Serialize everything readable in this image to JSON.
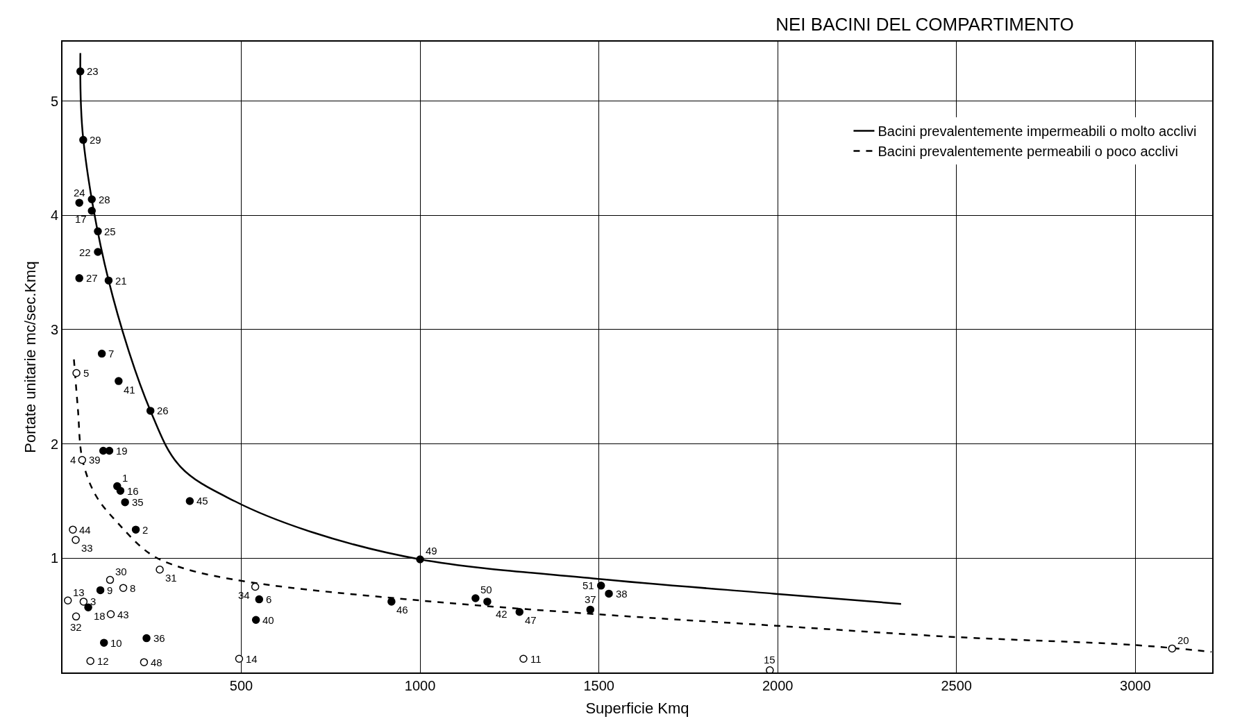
{
  "chart_data": {
    "type": "scatter",
    "title": "NEI BACINI DEL COMPARTIMENTO",
    "xlabel": "Superficie Kmq",
    "ylabel": "Portate unitarie mc/sec.Kmq",
    "xlim": [
      0,
      3215
    ],
    "ylim": [
      0,
      5.52
    ],
    "xticks": [
      500,
      1000,
      1500,
      2000,
      2500,
      3000
    ],
    "yticks": [
      1,
      2,
      3,
      4,
      5
    ],
    "grid": true,
    "legend": "top right",
    "marker": "circle",
    "series": [
      {
        "name": "Bacini prevalentemente impermeabili o molto acclivi",
        "type": "line",
        "line_style": "solid",
        "marker": "none",
        "color": "#000000",
        "x": [
          50,
          58,
          129,
          246,
          330,
          481,
          696,
          1000,
          1494,
          1989,
          2345
        ],
        "values": [
          5.42,
          4.67,
          3.43,
          2.29,
          1.8,
          1.5,
          1.23,
          0.99,
          0.82,
          0.69,
          0.6
        ]
      },
      {
        "name": "Bacini prevalentemente permeabili o poco acclivi",
        "type": "line",
        "line_style": "dashed",
        "marker": "none",
        "color": "#000000",
        "x": [
          32,
          43,
          56,
          93,
          157,
          244,
          330,
          524,
          1000,
          1494,
          1989,
          2498,
          2999,
          3213
        ],
        "values": [
          2.74,
          2.31,
          1.86,
          1.55,
          1.3,
          1.04,
          0.92,
          0.79,
          0.63,
          0.51,
          0.41,
          0.31,
          0.24,
          0.18
        ]
      },
      {
        "color": "#000000",
        "x": [
          50,
          58,
          47,
          82,
          82,
          99,
          99,
          129,
          47,
          110,
          157,
          246,
          114,
          131,
          153,
          162,
          175,
          356,
          205,
          106,
          72,
          116,
          235,
          550,
          541,
          1000,
          920,
          1155,
          1188,
          1278,
          1476,
          1506,
          1528
        ],
        "values": [
          5.26,
          4.66,
          4.11,
          4.14,
          4.04,
          3.86,
          3.68,
          3.43,
          3.45,
          2.79,
          2.55,
          2.29,
          1.94,
          1.94,
          1.63,
          1.59,
          1.49,
          1.5,
          1.25,
          0.72,
          0.57,
          0.26,
          0.3,
          0.64,
          0.46,
          0.99,
          0.62,
          0.65,
          0.62,
          0.53,
          0.55,
          0.76,
          0.69
        ]
      },
      {
        "color": "#ffffff",
        "x": [
          39,
          55,
          29,
          37,
          133,
          170,
          15,
          59,
          135,
          38,
          272,
          78,
          228,
          494,
          539,
          1289,
          1978,
          3103
        ],
        "values": [
          2.62,
          1.86,
          1.25,
          1.16,
          0.81,
          0.74,
          0.63,
          0.62,
          0.51,
          0.49,
          0.9,
          0.1,
          0.09,
          0.12,
          0.75,
          0.12,
          0.02,
          0.21
        ]
      }
    ],
    "annotations": [
      {
        "text": "23",
        "x": 50,
        "y": 5.26
      },
      {
        "text": "29",
        "x": 58,
        "y": 4.66
      },
      {
        "text": "24",
        "x": 47,
        "y": 4.11
      },
      {
        "text": "28",
        "x": 82,
        "y": 4.14
      },
      {
        "text": "17",
        "x": 82,
        "y": 4.04
      },
      {
        "text": "25",
        "x": 99,
        "y": 3.86
      },
      {
        "text": "22",
        "x": 99,
        "y": 3.68
      },
      {
        "text": "21",
        "x": 129,
        "y": 3.43
      },
      {
        "text": "27",
        "x": 47,
        "y": 3.45
      },
      {
        "text": "7",
        "x": 110,
        "y": 2.79
      },
      {
        "text": "41",
        "x": 157,
        "y": 2.55
      },
      {
        "text": "26",
        "x": 246,
        "y": 2.29
      },
      {
        "text": "19",
        "x": 131,
        "y": 1.94
      },
      {
        "text": "1",
        "x": 153,
        "y": 1.63
      },
      {
        "text": "16",
        "x": 162,
        "y": 1.59
      },
      {
        "text": "35",
        "x": 175,
        "y": 1.49
      },
      {
        "text": "45",
        "x": 356,
        "y": 1.5
      },
      {
        "text": "2",
        "x": 205,
        "y": 1.25
      },
      {
        "text": "9",
        "x": 106,
        "y": 0.72
      },
      {
        "text": "18",
        "x": 72,
        "y": 0.57
      },
      {
        "text": "10",
        "x": 116,
        "y": 0.26
      },
      {
        "text": "36",
        "x": 235,
        "y": 0.3
      },
      {
        "text": "6",
        "x": 550,
        "y": 0.64
      },
      {
        "text": "40",
        "x": 541,
        "y": 0.46
      },
      {
        "text": "49",
        "x": 1000,
        "y": 0.99
      },
      {
        "text": "46",
        "x": 920,
        "y": 0.62
      },
      {
        "text": "50",
        "x": 1155,
        "y": 0.65
      },
      {
        "text": "42",
        "x": 1188,
        "y": 0.62
      },
      {
        "text": "47",
        "x": 1278,
        "y": 0.53
      },
      {
        "text": "37",
        "x": 1476,
        "y": 0.55
      },
      {
        "text": "51",
        "x": 1506,
        "y": 0.76
      },
      {
        "text": "38",
        "x": 1528,
        "y": 0.69
      },
      {
        "text": "5",
        "x": 39,
        "y": 2.62
      },
      {
        "text": "39",
        "x": 55,
        "y": 1.86
      },
      {
        "text": "4",
        "x": 55,
        "y": 1.86
      },
      {
        "text": "44",
        "x": 29,
        "y": 1.25
      },
      {
        "text": "33",
        "x": 37,
        "y": 1.16
      },
      {
        "text": "30",
        "x": 133,
        "y": 0.81
      },
      {
        "text": "8",
        "x": 170,
        "y": 0.74
      },
      {
        "text": "13",
        "x": 15,
        "y": 0.63
      },
      {
        "text": "3",
        "x": 59,
        "y": 0.62
      },
      {
        "text": "43",
        "x": 135,
        "y": 0.51
      },
      {
        "text": "32",
        "x": 38,
        "y": 0.49
      },
      {
        "text": "31",
        "x": 272,
        "y": 0.9
      },
      {
        "text": "12",
        "x": 78,
        "y": 0.1
      },
      {
        "text": "48",
        "x": 228,
        "y": 0.09
      },
      {
        "text": "14",
        "x": 494,
        "y": 0.12
      },
      {
        "text": "34",
        "x": 539,
        "y": 0.75
      },
      {
        "text": "11",
        "x": 1289,
        "y": 0.12
      },
      {
        "text": "15",
        "x": 1978,
        "y": 0.02
      },
      {
        "text": "20",
        "x": 3103,
        "y": 0.21
      }
    ]
  }
}
